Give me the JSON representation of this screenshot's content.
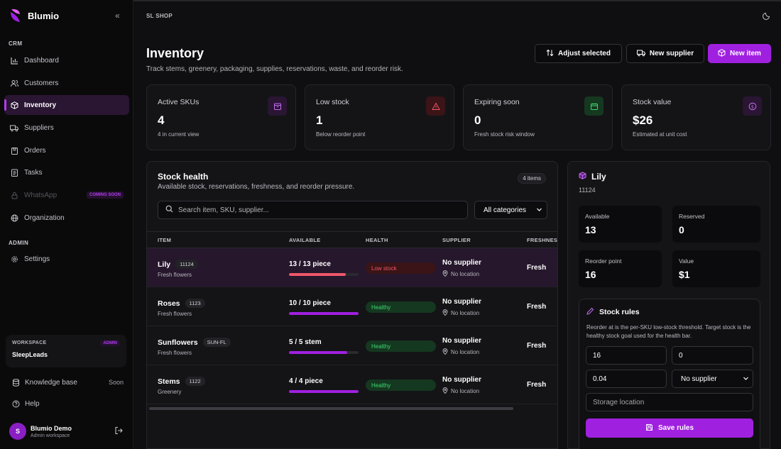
{
  "brand": {
    "name": "Blumio"
  },
  "sidebar": {
    "section_crm": "CRM",
    "section_admin": "ADMIN",
    "items": [
      {
        "label": "Dashboard"
      },
      {
        "label": "Customers"
      },
      {
        "label": "Inventory"
      },
      {
        "label": "Suppliers"
      },
      {
        "label": "Orders"
      },
      {
        "label": "Tasks"
      },
      {
        "label": "WhatsApp",
        "badge": "COMING SOON"
      },
      {
        "label": "Organization"
      }
    ],
    "settings": "Settings",
    "workspace": {
      "label": "WORKSPACE",
      "badge": "ADMIN",
      "name": "SleepLeads"
    },
    "knowledge_base": {
      "label": "Knowledge base",
      "status": "Soon"
    },
    "help": "Help",
    "user": {
      "initial": "S",
      "name": "Blumio Demo",
      "role": "Admin workspace"
    }
  },
  "header": {
    "shop": "SL SHOP"
  },
  "page": {
    "title": "Inventory",
    "subtitle": "Track stems, greenery, packaging, supplies, reservations, waste, and reorder risk.",
    "actions": {
      "adjust": "Adjust selected",
      "supplier": "New supplier",
      "item": "New item"
    }
  },
  "stats": [
    {
      "title": "Active SKUs",
      "value": "4",
      "sub": "4 in current view"
    },
    {
      "title": "Low stock",
      "value": "1",
      "sub": "Below reorder point"
    },
    {
      "title": "Expiring soon",
      "value": "0",
      "sub": "Fresh stock risk window"
    },
    {
      "title": "Stock value",
      "value": "$26",
      "sub": "Estimated at unit cost"
    }
  ],
  "health_panel": {
    "title": "Stock health",
    "subtitle": "Available stock, reservations, freshness, and reorder pressure.",
    "count": "4 items",
    "search_placeholder": "Search item, SKU, supplier...",
    "category": "All categories",
    "columns": {
      "item": "ITEM",
      "available": "AVAILABLE",
      "health": "HEALTH",
      "supplier": "SUPPLIER",
      "freshness": "FRESHNES"
    },
    "rows": [
      {
        "name": "Lily",
        "sku": "11124",
        "category": "Fresh flowers",
        "available": "13 / 13 piece",
        "health": "Low stock",
        "level": 0.82,
        "supplier": "No supplier",
        "location": "No location",
        "freshness": "Fresh"
      },
      {
        "name": "Roses",
        "sku": "1123",
        "category": "Fresh flowers",
        "available": "10 / 10 piece",
        "health": "Healthy",
        "level": 1.0,
        "supplier": "No supplier",
        "location": "No location",
        "freshness": "Fresh"
      },
      {
        "name": "Sunflowers",
        "sku": "SUN-FL",
        "category": "Fresh flowers",
        "available": "5 / 5 stem",
        "health": "Healthy",
        "level": 0.84,
        "supplier": "No supplier",
        "location": "No location",
        "freshness": "Fresh"
      },
      {
        "name": "Stems",
        "sku": "1122",
        "category": "Greenery",
        "available": "4 / 4 piece",
        "health": "Healthy",
        "level": 1.0,
        "supplier": "No supplier",
        "location": "No location",
        "freshness": "Fresh"
      }
    ]
  },
  "detail": {
    "name": "Lily",
    "sku": "11124",
    "kpis": [
      {
        "label": "Available",
        "value": "13"
      },
      {
        "label": "Reserved",
        "value": "0"
      },
      {
        "label": "Reorder point",
        "value": "16"
      },
      {
        "label": "Value",
        "value": "$1"
      }
    ],
    "rules": {
      "title": "Stock rules",
      "description": "Reorder at is the per-SKU low-stock threshold. Target stock is the healthy stock goal used for the health bar.",
      "reorder_at": "16",
      "target": "0",
      "unit_cost": "0.04",
      "supplier": "No supplier",
      "location_placeholder": "Storage location",
      "save": "Save rules"
    }
  },
  "colors": {
    "accent": "#a020e0",
    "low": "#f0566a",
    "healthy": "#3fd870"
  }
}
